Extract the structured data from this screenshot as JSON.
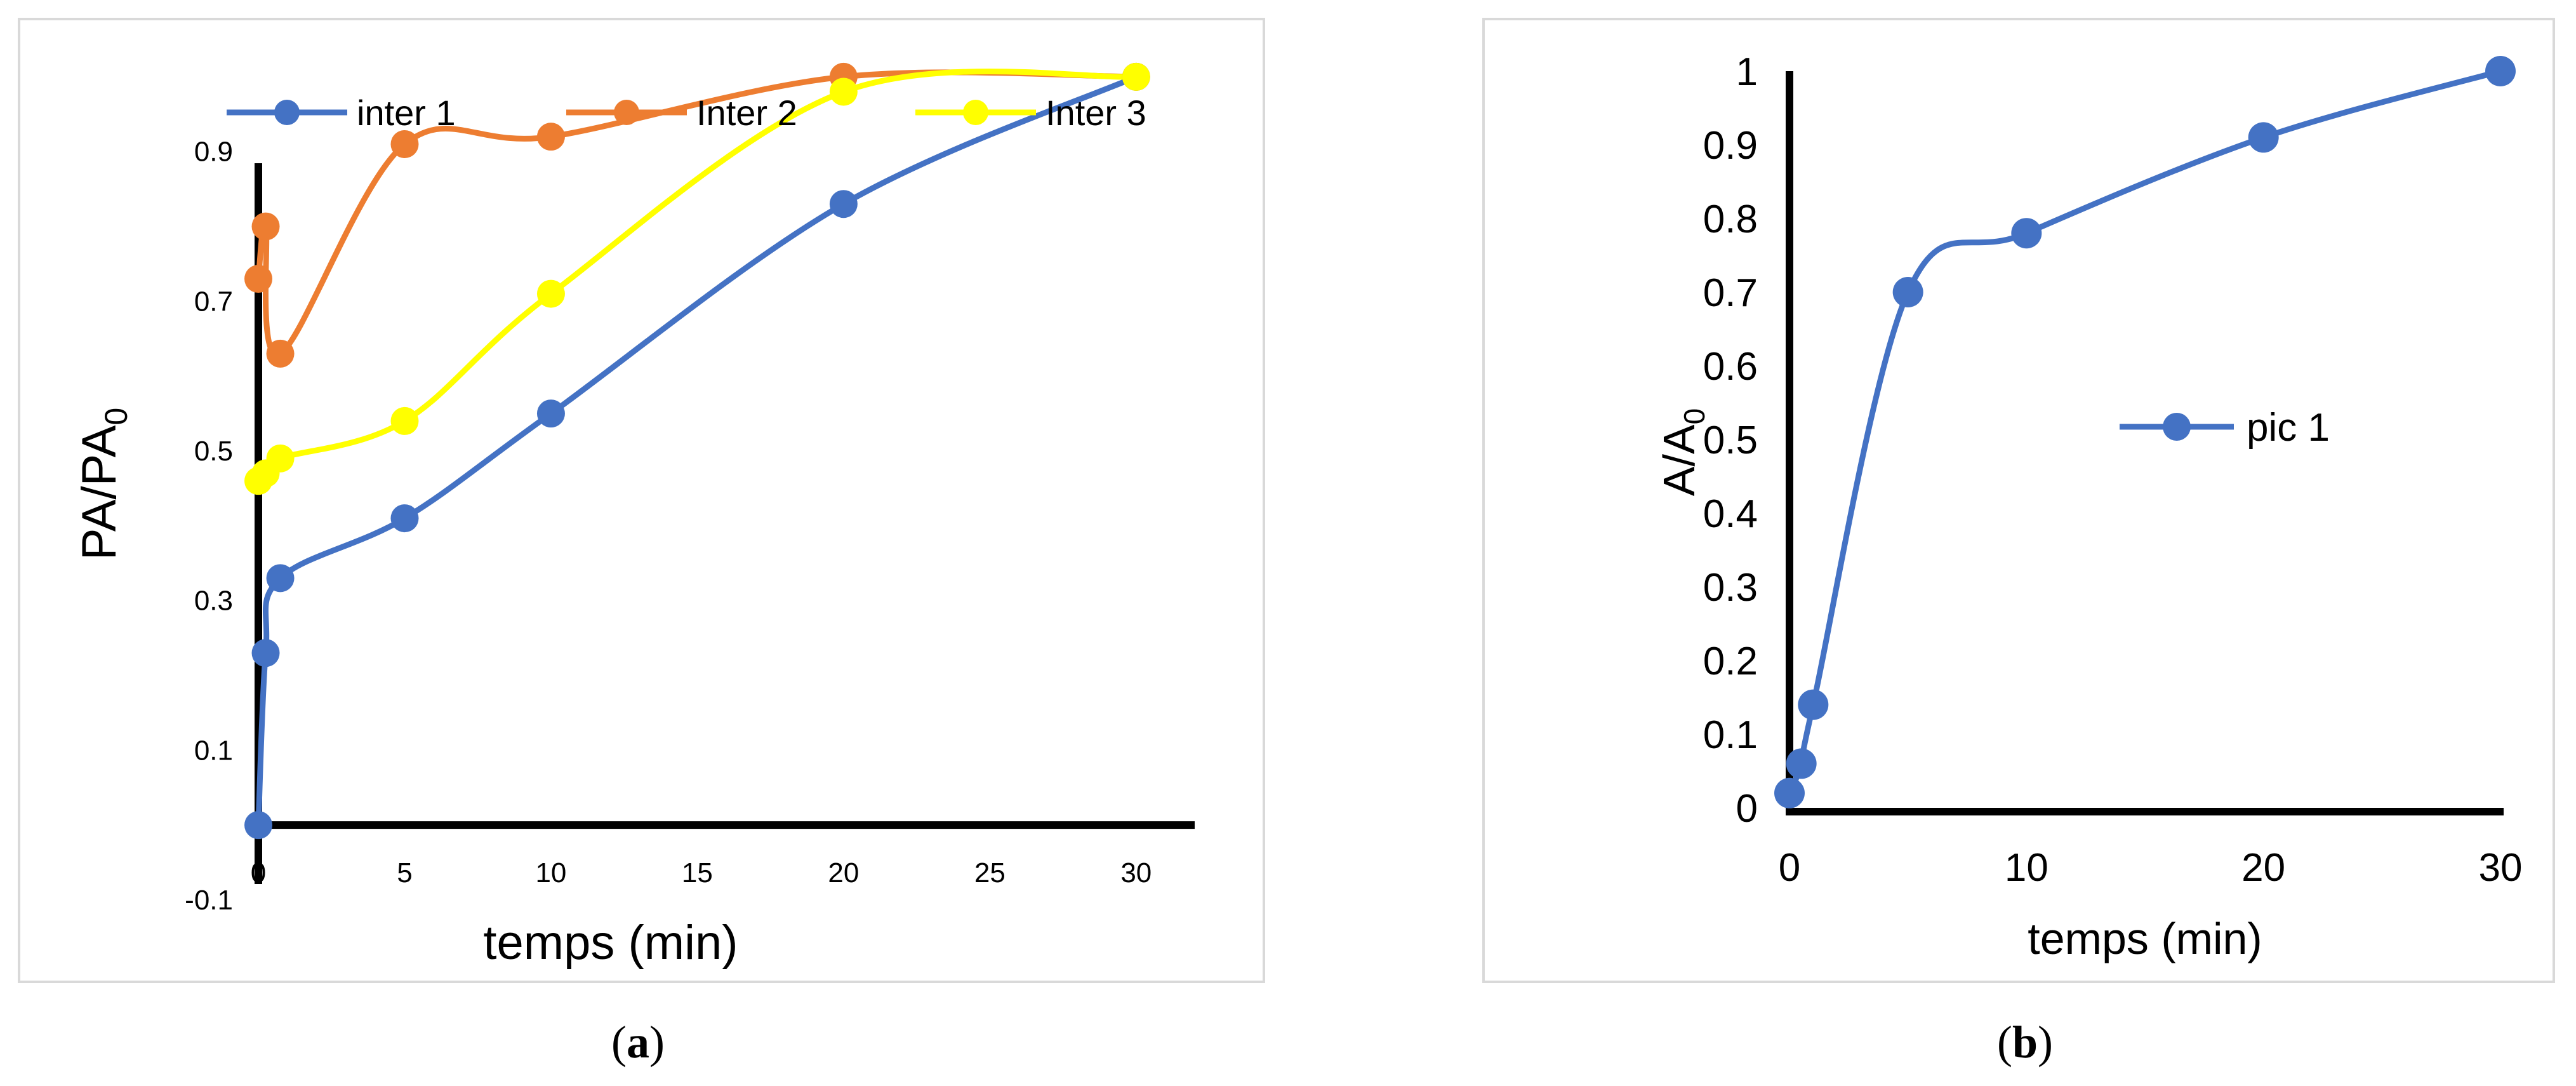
{
  "chart_data": [
    {
      "type": "line",
      "panel": "a",
      "xlabel": "temps (min)",
      "ylabel": "PA/PA",
      "ylabel_subscript": "0",
      "xlim": [
        0,
        32
      ],
      "ylim": [
        -0.1,
        1.05
      ],
      "x_ticks": [
        "0",
        "5",
        "10",
        "15",
        "20",
        "25",
        "30"
      ],
      "y_ticks": [
        "-0.1",
        "0.1",
        "0.3",
        "0.5",
        "0.7",
        "0.9"
      ],
      "grid": false,
      "legend": "top",
      "series": [
        {
          "name": "inter 1",
          "color": "#4472c4",
          "x": [
            0,
            0.25,
            0.75,
            5,
            10,
            20,
            30
          ],
          "y": [
            0.0,
            0.23,
            0.33,
            0.41,
            0.55,
            0.83,
            1.0
          ]
        },
        {
          "name": "Inter 2",
          "color": "#ed7d31",
          "x": [
            0,
            0.25,
            0.75,
            5,
            10,
            20,
            30
          ],
          "y": [
            0.73,
            0.8,
            0.63,
            0.91,
            0.92,
            1.0,
            1.0
          ]
        },
        {
          "name": "Inter 3",
          "color": "#ffff00",
          "x": [
            0,
            0.25,
            0.75,
            5,
            10,
            20,
            30
          ],
          "y": [
            0.46,
            0.47,
            0.49,
            0.54,
            0.71,
            0.98,
            1.0
          ]
        }
      ]
    },
    {
      "type": "line",
      "panel": "b",
      "xlabel": "temps (min)",
      "ylabel": "A/A",
      "ylabel_subscript": "0",
      "xlim": [
        0,
        30
      ],
      "ylim": [
        0,
        1
      ],
      "x_ticks": [
        "0",
        "10",
        "20",
        "30"
      ],
      "y_ticks": [
        "0",
        "0.1",
        "0.2",
        "0.3",
        "0.4",
        "0.5",
        "0.6",
        "0.7",
        "0.8",
        "0.9",
        "1"
      ],
      "grid": false,
      "legend": "right",
      "series": [
        {
          "name": "pic 1",
          "color": "#4472c4",
          "x": [
            0,
            0.5,
            1,
            5,
            10,
            20,
            30
          ],
          "y": [
            0.02,
            0.06,
            0.14,
            0.7,
            0.78,
            0.91,
            1.0
          ]
        }
      ]
    }
  ],
  "captions": {
    "a": "a",
    "b": "b"
  }
}
